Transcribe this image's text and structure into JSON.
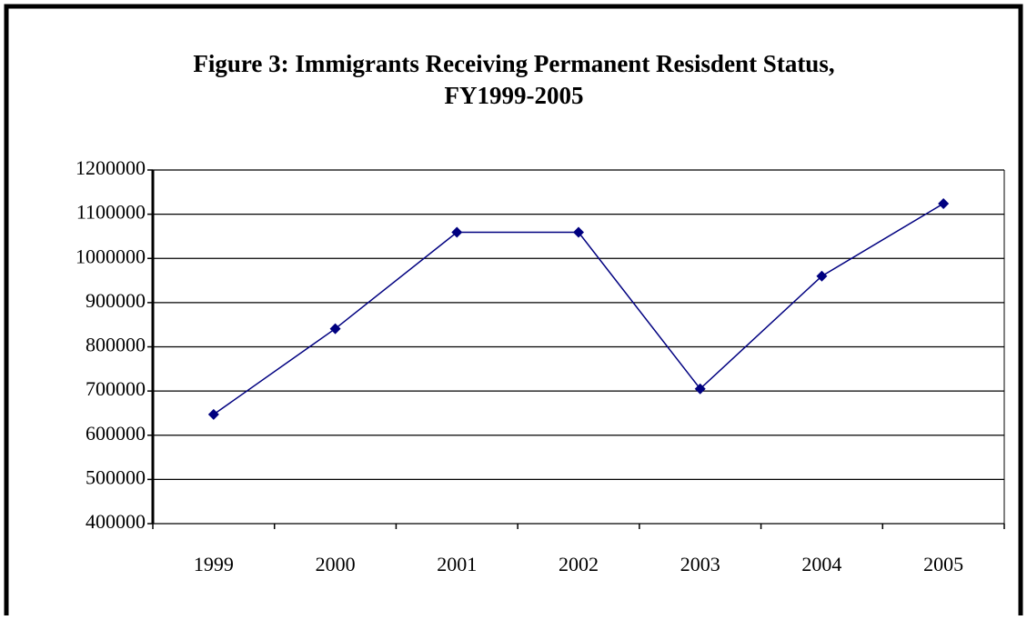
{
  "chart_data": {
    "type": "line",
    "title": [
      "Figure 3: Immigrants Receiving Permanent Resisdent Status,",
      "FY1999-2005"
    ],
    "categories": [
      "1999",
      "2000",
      "2001",
      "2002",
      "2003",
      "2004",
      "2005"
    ],
    "series": [
      {
        "name": "Immigrants",
        "color": "#000080",
        "values": [
          647000,
          841000,
          1059000,
          1059000,
          705000,
          960000,
          1124000
        ]
      }
    ],
    "ylim": [
      400000,
      1200000
    ],
    "yticks": [
      400000,
      500000,
      600000,
      700000,
      800000,
      900000,
      1000000,
      1100000,
      1200000
    ],
    "grid": true
  }
}
